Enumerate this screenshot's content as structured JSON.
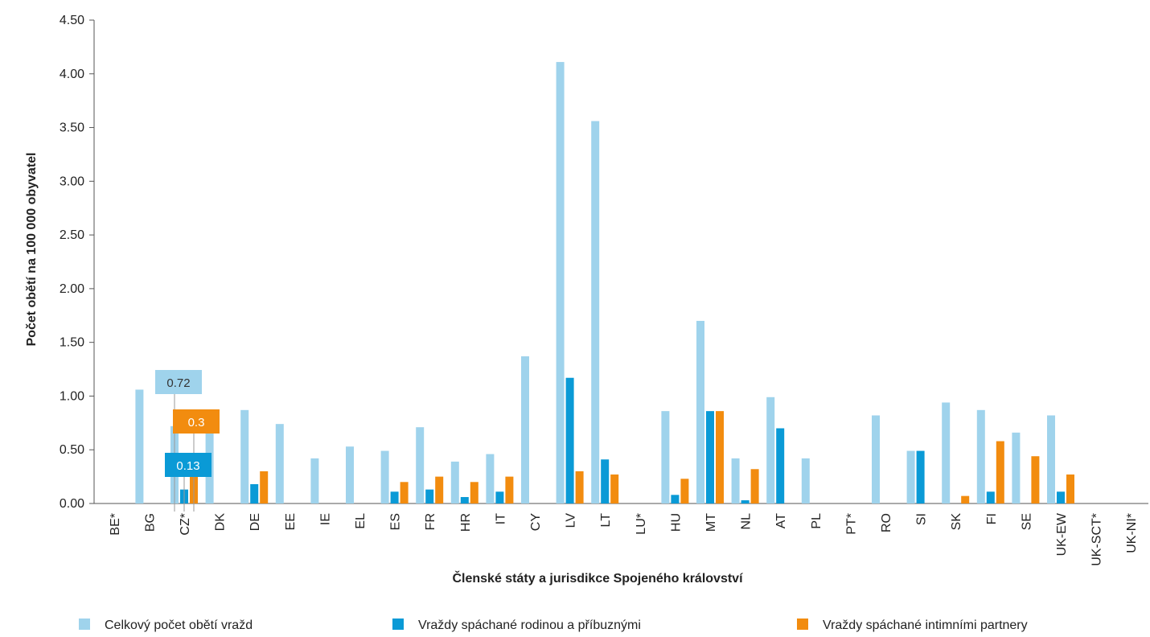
{
  "chart_data": {
    "type": "bar",
    "title": "",
    "xlabel": "Členské státy a jurisdikce Spojeného království",
    "ylabel": "Počet obětí na 100 000 obyvatel",
    "ylim": [
      0,
      4.5
    ],
    "yticks": [
      "0.00",
      "0.50",
      "1.00",
      "1.50",
      "2.00",
      "2.50",
      "3.00",
      "3.50",
      "4.00",
      "4.50"
    ],
    "grid": false,
    "legend_position": "bottom",
    "categories": [
      "BE*",
      "BG",
      "CZ*",
      "DK",
      "DE",
      "EE",
      "IE",
      "EL",
      "ES",
      "FR",
      "HR",
      "IT",
      "CY",
      "LV",
      "LT",
      "LU*",
      "HU",
      "MT",
      "NL",
      "AT",
      "PL",
      "PT*",
      "RO",
      "SI",
      "SK",
      "FI",
      "SE",
      "UK-EW",
      "UK-SCT*",
      "UK-NI*"
    ],
    "series": [
      {
        "name": "Celkový počet obětí vražd",
        "color": "#9fd3ec",
        "values": [
          null,
          1.06,
          0.72,
          0.72,
          0.87,
          0.74,
          0.42,
          0.53,
          0.49,
          0.71,
          0.39,
          0.46,
          1.37,
          4.11,
          3.56,
          null,
          0.86,
          1.7,
          0.42,
          0.99,
          0.42,
          null,
          0.82,
          0.49,
          0.94,
          0.87,
          0.66,
          0.82,
          null,
          null
        ]
      },
      {
        "name": "Vraždy spáchané rodinou a příbuznými",
        "color": "#0a9ad6",
        "values": [
          null,
          null,
          0.13,
          null,
          0.18,
          null,
          null,
          null,
          0.11,
          0.13,
          0.06,
          0.11,
          null,
          1.17,
          0.41,
          null,
          0.08,
          0.86,
          0.03,
          0.7,
          null,
          null,
          null,
          0.49,
          null,
          0.11,
          null,
          0.11,
          null,
          null
        ]
      },
      {
        "name": "Vraždy spáchané intimními partnery",
        "color": "#f28c0f",
        "values": [
          null,
          null,
          0.3,
          null,
          0.3,
          null,
          null,
          null,
          0.2,
          0.25,
          0.2,
          0.25,
          null,
          0.3,
          0.27,
          null,
          0.23,
          0.86,
          0.32,
          null,
          null,
          null,
          null,
          null,
          0.07,
          0.58,
          0.44,
          0.27,
          null,
          null
        ]
      }
    ],
    "callouts": [
      {
        "category": "CZ*",
        "series": 0,
        "label": "0.72"
      },
      {
        "category": "CZ*",
        "series": 2,
        "label": "0.3"
      },
      {
        "category": "CZ*",
        "series": 1,
        "label": "0.13"
      }
    ]
  }
}
